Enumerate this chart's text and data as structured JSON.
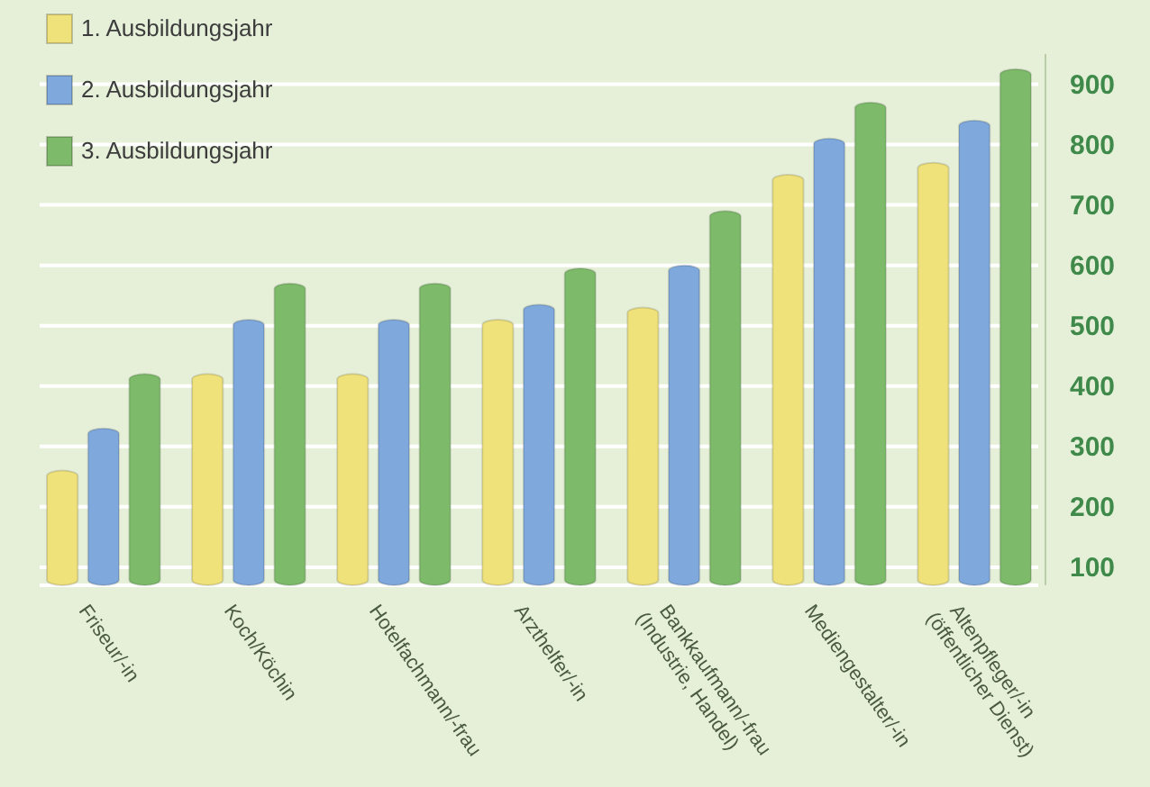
{
  "chart_data": {
    "type": "bar",
    "categories": [
      "Friseur/-in",
      "Koch/Köchin",
      "Hotelfachmann/-frau",
      "Arzthelfer/-in",
      "Bankkaufmann/-frau\n(Industrie, Handel)",
      "Mediengestalter/-in",
      "Altenpfleger/-in\n(öffentlicher Dienst)"
    ],
    "series": [
      {
        "name": "1. Ausbildungsjahr",
        "color": "#f0e27a",
        "values": [
          260,
          420,
          420,
          510,
          530,
          750,
          770
        ]
      },
      {
        "name": "2. Ausbildungsjahr",
        "color": "#7fa8dc",
        "values": [
          330,
          510,
          510,
          535,
          600,
          810,
          840
        ]
      },
      {
        "name": "3. Ausbildungsjahr",
        "color": "#7dbb6a",
        "values": [
          420,
          570,
          570,
          595,
          690,
          870,
          925
        ]
      }
    ],
    "ylim": [
      70,
      950
    ],
    "yticks": [
      100,
      200,
      300,
      400,
      500,
      600,
      700,
      800,
      900
    ],
    "grid": "y",
    "legend": "top left"
  }
}
